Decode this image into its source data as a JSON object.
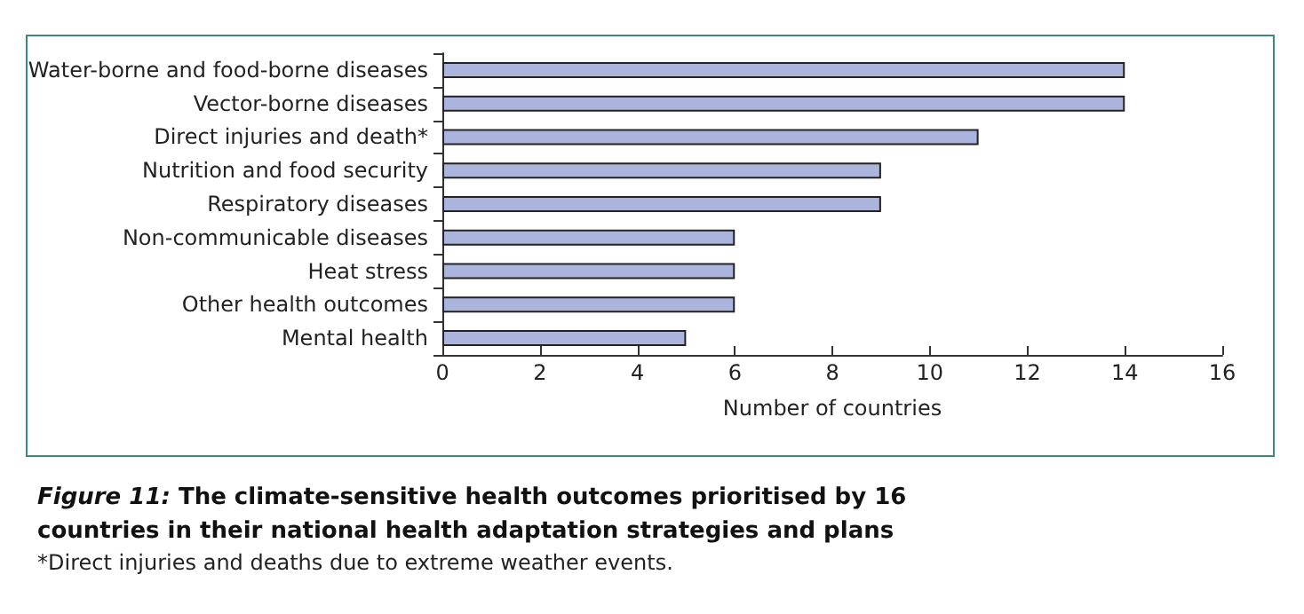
{
  "chart_data": {
    "type": "bar",
    "orientation": "horizontal",
    "title": "Figure 11: The climate-sensitive health outcomes prioritised by 16 countries in their national health adaptation strategies and plans",
    "xlabel": "Number of countries",
    "categories": [
      "Water-borne and food-borne diseases",
      "Vector-borne diseases",
      "Direct injuries and death*",
      "Nutrition and food security",
      "Respiratory diseases",
      "Non-communicable diseases",
      "Heat stress",
      "Other health outcomes",
      "Mental health"
    ],
    "values": [
      14,
      14,
      11,
      9,
      9,
      6,
      6,
      6,
      5
    ],
    "color": "#aab4dc",
    "xlim": [
      0,
      16
    ],
    "xticks": [
      0,
      2,
      4,
      6,
      8,
      10,
      12,
      14,
      16
    ],
    "grid": false,
    "annotations": [
      "*Direct injuries and deaths due to extreme weather events."
    ]
  }
}
